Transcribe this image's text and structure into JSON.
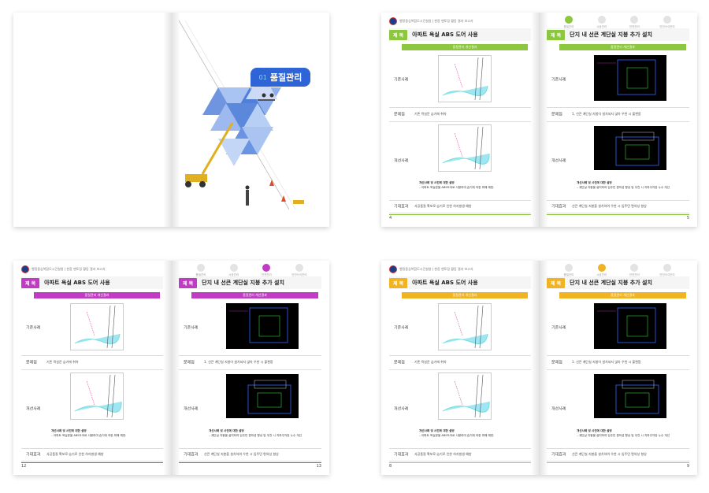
{
  "colors": {
    "green": "#8dc63f",
    "magenta": "#c13cc4",
    "yellow": "#f0b323",
    "blue": "#2f64d6"
  },
  "cover": {
    "number": "01",
    "title": "품질관리"
  },
  "header_text": "행정중심복합도시건설청 | 현장 맨토링 활동 결과 보고서",
  "steps": [
    "품질관리",
    "시공관리",
    "안전관리",
    "안전서식관리"
  ],
  "left_page": {
    "tag": "제 목",
    "title": "아파트 욕실 ABS 도어 사용",
    "band": "품질관리 개선결과",
    "rows": {
      "before": "기존사례",
      "problem": "문제점",
      "after": "개선사례",
      "effect": "기대효과"
    },
    "problem_text": "기존 욕실문 습기에 취약",
    "note_title": "개선사례 및 사진에 대한 설명",
    "note_body": "– 아파트 욕실문을 ABS도어로 사용하여 습기에 의한 피해 예방.",
    "effect_text": "사공품질 확보로 습기로 인한 하자발생 예방"
  },
  "right_page": {
    "tag": "제 목",
    "title": "단지 내 선큰 계단실 지붕 추가 설치",
    "band": "품질관리 개선결과",
    "rows": {
      "before": "기존사례",
      "problem": "문제점",
      "after": "개선사례",
      "effect": "기대효과"
    },
    "problem_text": "1. 선큰 계단실 지붕이 설치되지 않아 우천 시 불편함",
    "note_title": "개선사례 및 사진에 대한 설명",
    "note_body": "– 계단실 지붕을 설치하여 입주민 편의성 향상 및 우천 시 지하주차장 누수 개선",
    "effect_text": "선큰 계단실 지붕을 설치하여 우천 시 입주민 편의성 향상"
  },
  "spreads": [
    {
      "left_num": "4",
      "right_num": "5",
      "accent": "green"
    },
    {
      "left_num": "12",
      "right_num": "13",
      "accent": "magenta"
    },
    {
      "left_num": "8",
      "right_num": "9",
      "accent": "yellow"
    }
  ]
}
